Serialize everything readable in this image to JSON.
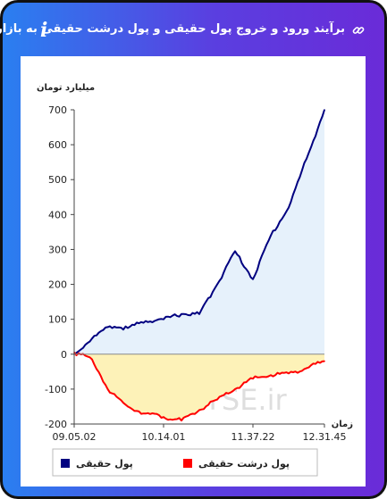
{
  "header": {
    "title": "برآیند ورود و خروج پول حقیقی و پول درشت حقیقی به بازار",
    "info_icon": "info-icon",
    "link_icon": "link-icon"
  },
  "watermark": "LiveTSE.ir",
  "colors": {
    "frame_start": "#2a7ff0",
    "frame_end": "#6a2bd8",
    "series_real": "#000080",
    "series_big": "#ff0000",
    "area_real": "#e6f1fb",
    "area_big": "#fdf2b8"
  },
  "chart_data": {
    "type": "area",
    "ylabel": "میلیارد تومان",
    "xlabel": "زمان",
    "ylim": [
      -200,
      700
    ],
    "yticks": [
      700,
      600,
      500,
      400,
      300,
      200,
      100,
      0,
      -100,
      -200
    ],
    "x_tick_labels": [
      "09.05.02",
      "10.14.01",
      "11.37.22",
      "12.31.45"
    ],
    "grid": false,
    "legend_position": "bottom",
    "x": [
      "09.05.02",
      "09.18.00",
      "09.30.00",
      "09.45.00",
      "10.00.00",
      "10.14.01",
      "10.30.00",
      "10.45.00",
      "11.00.00",
      "11.15.00",
      "11.37.22",
      "11.50.00",
      "12.05.00",
      "12.20.00",
      "12.31.45"
    ],
    "series": [
      {
        "name": "پول حقیقی",
        "color": "#000080",
        "values": [
          0,
          45,
          80,
          75,
          95,
          100,
          115,
          115,
          200,
          295,
          215,
          340,
          420,
          560,
          700
        ]
      },
      {
        "name": "پول درشت حقیقی",
        "color": "#ff0000",
        "values": [
          5,
          -15,
          -110,
          -150,
          -170,
          -180,
          -190,
          -160,
          -130,
          -100,
          -70,
          -60,
          -55,
          -40,
          -20
        ]
      }
    ]
  }
}
